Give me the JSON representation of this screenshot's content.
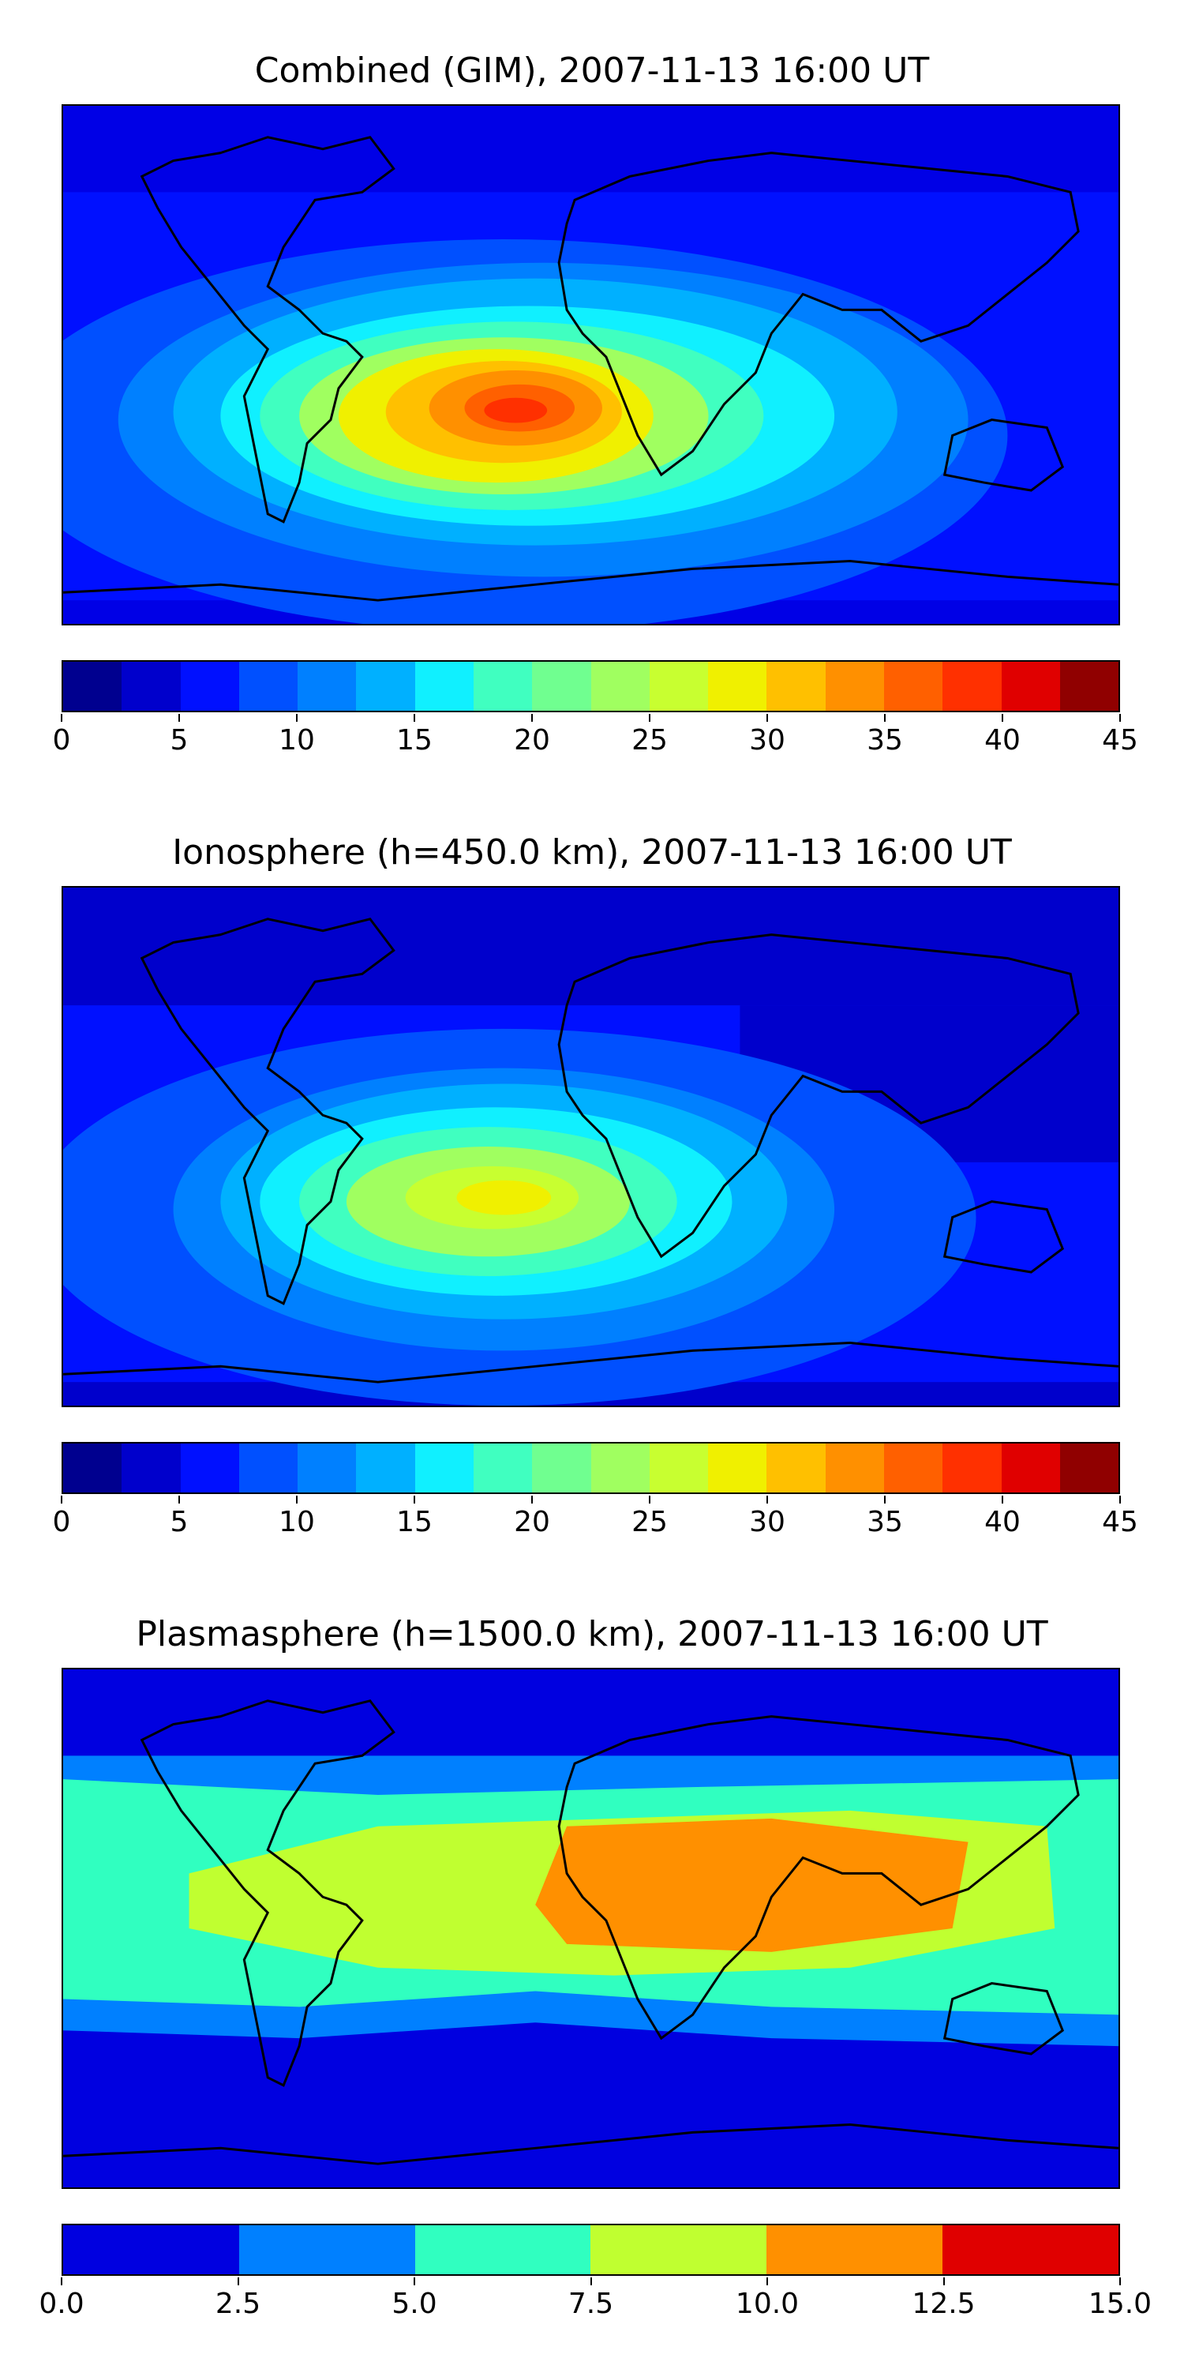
{
  "panels": [
    {
      "title": "Combined (GIM), 2007-11-13 16:00 UT",
      "colorbar": {
        "colors": [
          "#00008f",
          "#0000cc",
          "#0010ff",
          "#0050ff",
          "#0080ff",
          "#00b0ff",
          "#10f0ff",
          "#40ffc0",
          "#70ff90",
          "#a0ff60",
          "#c8ff30",
          "#f0f000",
          "#ffc000",
          "#ff9000",
          "#ff6000",
          "#ff3000",
          "#e00000",
          "#900000"
        ],
        "ticks": [
          "0",
          "5",
          "10",
          "15",
          "20",
          "25",
          "30",
          "35",
          "40",
          "45"
        ]
      }
    },
    {
      "title": "Ionosphere  (h=450.0 km), 2007-11-13 16:00 UT",
      "colorbar": {
        "colors": [
          "#00008f",
          "#0000cc",
          "#0010ff",
          "#0050ff",
          "#0080ff",
          "#00b0ff",
          "#10f0ff",
          "#40ffc0",
          "#70ff90",
          "#a0ff60",
          "#c8ff30",
          "#f0f000",
          "#ffc000",
          "#ff9000",
          "#ff6000",
          "#ff3000",
          "#e00000",
          "#900000"
        ],
        "ticks": [
          "0",
          "5",
          "10",
          "15",
          "20",
          "25",
          "30",
          "35",
          "40",
          "45"
        ]
      }
    },
    {
      "title": "Plasmasphere (h=1500.0 km), 2007-11-13 16:00 UT",
      "colorbar": {
        "colors": [
          "#0000e0",
          "#0080ff",
          "#30ffc0",
          "#c0ff30",
          "#ff9000",
          "#e00000"
        ],
        "ticks": [
          "0.0",
          "2.5",
          "5.0",
          "7.5",
          "10.0",
          "12.5",
          "15.0"
        ]
      }
    }
  ]
}
